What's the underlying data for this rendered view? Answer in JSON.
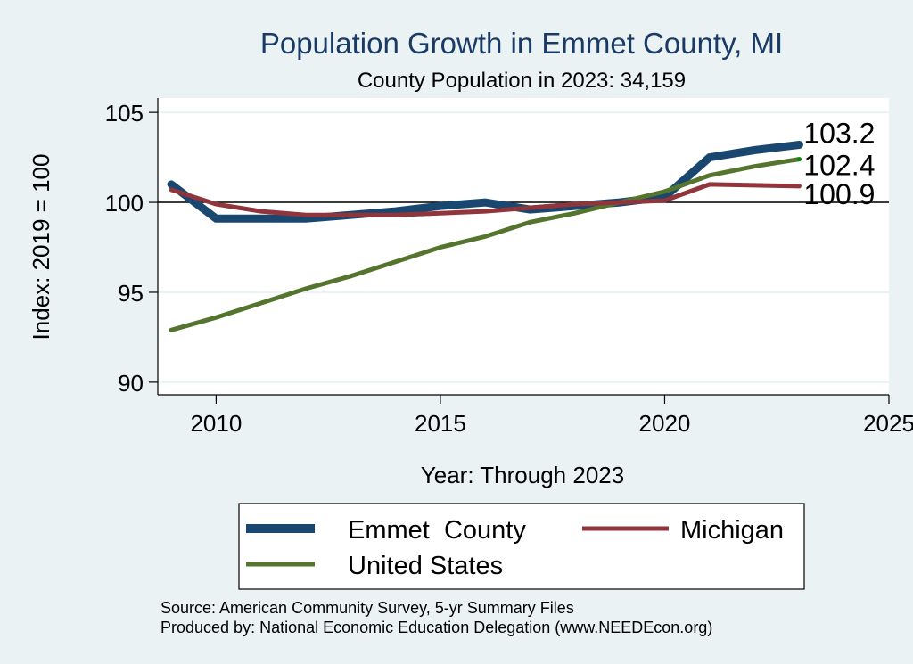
{
  "chart_data": {
    "type": "line",
    "title": "Population Growth in Emmet County, MI",
    "subtitle": "County Population in 2023: 34,159",
    "xlabel": "Year: Through 2023",
    "ylabel": "Index: 2019 = 100",
    "xlim": [
      2008.7,
      2025
    ],
    "ylim": [
      89.3,
      105.8
    ],
    "xticks": [
      2010,
      2015,
      2020,
      2025
    ],
    "yticks": [
      90,
      95,
      100,
      105
    ],
    "reference_line": 100,
    "grid": true,
    "x": [
      2009,
      2010,
      2011,
      2012,
      2013,
      2014,
      2015,
      2016,
      2017,
      2018,
      2019,
      2020,
      2021,
      2022,
      2023
    ],
    "series": [
      {
        "name": "Emmet  County",
        "color": "#1a476f",
        "width": 9,
        "values": [
          101.0,
          99.1,
          99.1,
          99.1,
          99.3,
          99.5,
          99.8,
          100.0,
          99.6,
          99.8,
          100.0,
          100.3,
          102.5,
          102.9,
          103.2
        ],
        "end_label": "103.2"
      },
      {
        "name": "Michigan",
        "color": "#90353b",
        "width": 5,
        "values": [
          100.7,
          99.9,
          99.5,
          99.3,
          99.3,
          99.3,
          99.4,
          99.5,
          99.7,
          99.9,
          100.0,
          100.1,
          101.0,
          100.95,
          100.9
        ],
        "end_label": "100.9"
      },
      {
        "name": "United States",
        "color": "#55752f",
        "width": 5,
        "values": [
          92.9,
          93.6,
          94.4,
          95.2,
          95.9,
          96.7,
          97.5,
          98.1,
          98.9,
          99.4,
          100.0,
          100.6,
          101.5,
          102.0,
          102.4
        ],
        "end_label": "102.4"
      }
    ],
    "legend": {
      "placement": "bottom",
      "entries": [
        "Emmet  County",
        "Michigan",
        "United States"
      ]
    },
    "notes": [
      "Source: American Community Survey, 5-yr Summary Files",
      "Produced by: National Economic Education Delegation (www.NEEDEcon.org)"
    ]
  }
}
